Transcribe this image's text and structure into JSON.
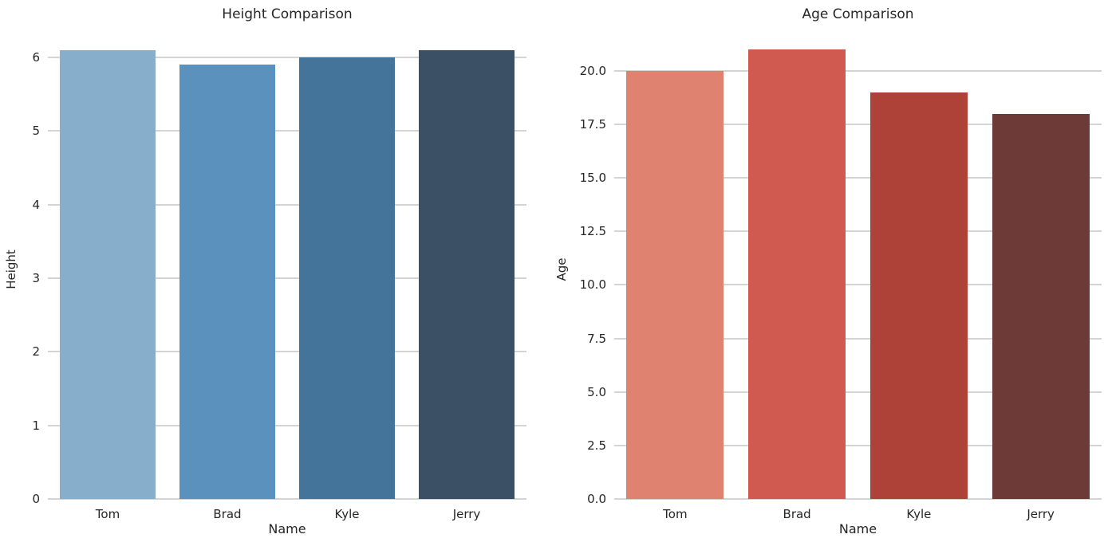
{
  "figure": {
    "background": "#ffffff",
    "text_color": "#262626",
    "grid_color": "#d4d4d4"
  },
  "chart_data": [
    {
      "type": "bar",
      "title": "Height Comparison",
      "xlabel": "Name",
      "ylabel": "Height",
      "categories": [
        "Tom",
        "Brad",
        "Kyle",
        "Jerry"
      ],
      "values": [
        6.1,
        5.9,
        6.0,
        6.1
      ],
      "ytick_values": [
        0,
        1,
        2,
        3,
        4,
        5,
        6
      ],
      "ytick_labels": [
        "0",
        "1",
        "2",
        "3",
        "4",
        "5",
        "6"
      ],
      "ylim": [
        0,
        6.24
      ],
      "grid": true,
      "legend": null,
      "bar_colors": [
        "#87aecb",
        "#5b92bd",
        "#44749a",
        "#3b5065"
      ]
    },
    {
      "type": "bar",
      "title": "Age Comparison",
      "xlabel": "Name",
      "ylabel": "Age",
      "categories": [
        "Tom",
        "Brad",
        "Kyle",
        "Jerry"
      ],
      "values": [
        20,
        21,
        19,
        18
      ],
      "ytick_values": [
        0,
        2.5,
        5,
        7.5,
        10,
        12.5,
        15,
        17.5,
        20
      ],
      "ytick_labels": [
        "0.0",
        "2.5",
        "5.0",
        "7.5",
        "10.0",
        "12.5",
        "15.0",
        "17.5",
        "20.0"
      ],
      "ylim": [
        0,
        21.45
      ],
      "grid": true,
      "legend": null,
      "bar_colors": [
        "#e08270",
        "#d15a50",
        "#ae4138",
        "#6e3a38"
      ]
    }
  ]
}
